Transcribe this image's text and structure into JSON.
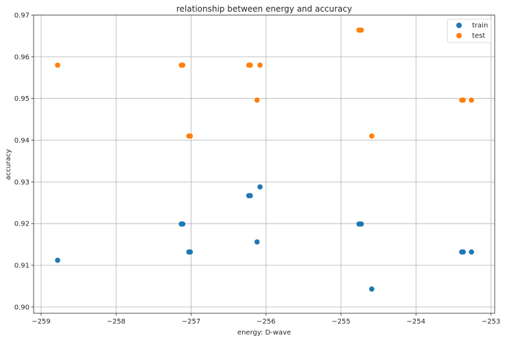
{
  "chart_data": {
    "type": "scatter",
    "title": "relationship between energy and accuracy",
    "xlabel": "energy: D-wave",
    "ylabel": "accuracy",
    "xlim": [
      -259.1,
      -252.95
    ],
    "ylim": [
      0.8985,
      0.97
    ],
    "xticks": [
      -259,
      -258,
      -257,
      -256,
      -255,
      -254,
      -253
    ],
    "xtick_labels": [
      "−259",
      "−258",
      "−257",
      "−256",
      "−255",
      "−254",
      "−253"
    ],
    "yticks": [
      0.9,
      0.91,
      0.92,
      0.93,
      0.94,
      0.95,
      0.96,
      0.97
    ],
    "ytick_labels": [
      "0.90",
      "0.91",
      "0.92",
      "0.93",
      "0.94",
      "0.95",
      "0.96",
      "0.97"
    ],
    "grid": true,
    "legend_position": "top-right",
    "series": [
      {
        "name": "train",
        "color": "#1f77b4",
        "points": [
          {
            "x": -258.78,
            "y": 0.9112
          },
          {
            "x": -257.13,
            "y": 0.9199
          },
          {
            "x": -257.11,
            "y": 0.9199
          },
          {
            "x": -257.03,
            "y": 0.9132
          },
          {
            "x": -257.01,
            "y": 0.9132
          },
          {
            "x": -256.23,
            "y": 0.9267
          },
          {
            "x": -256.21,
            "y": 0.9267
          },
          {
            "x": -256.12,
            "y": 0.9156
          },
          {
            "x": -256.08,
            "y": 0.9288
          },
          {
            "x": -254.76,
            "y": 0.9199
          },
          {
            "x": -254.73,
            "y": 0.9199
          },
          {
            "x": -254.59,
            "y": 0.9043
          },
          {
            "x": -253.39,
            "y": 0.9132
          },
          {
            "x": -253.37,
            "y": 0.9132
          },
          {
            "x": -253.26,
            "y": 0.9132
          }
        ]
      },
      {
        "name": "test",
        "color": "#ff7f0e",
        "points": [
          {
            "x": -258.78,
            "y": 0.958
          },
          {
            "x": -257.13,
            "y": 0.958
          },
          {
            "x": -257.11,
            "y": 0.958
          },
          {
            "x": -257.03,
            "y": 0.941
          },
          {
            "x": -257.01,
            "y": 0.941
          },
          {
            "x": -256.23,
            "y": 0.958
          },
          {
            "x": -256.21,
            "y": 0.958
          },
          {
            "x": -256.12,
            "y": 0.9496
          },
          {
            "x": -256.08,
            "y": 0.958
          },
          {
            "x": -254.76,
            "y": 0.9664
          },
          {
            "x": -254.73,
            "y": 0.9664
          },
          {
            "x": -254.59,
            "y": 0.941
          },
          {
            "x": -253.39,
            "y": 0.9496
          },
          {
            "x": -253.37,
            "y": 0.9496
          },
          {
            "x": -253.26,
            "y": 0.9496
          }
        ]
      }
    ]
  }
}
